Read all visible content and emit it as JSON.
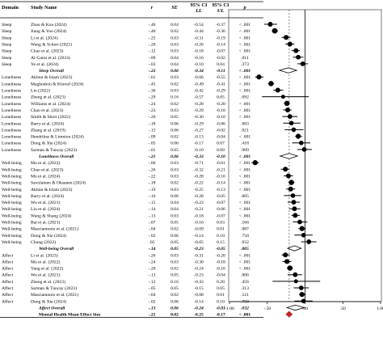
{
  "chart_data": {
    "type": "forest",
    "headers": {
      "domain": "Domain",
      "study": "Study Name",
      "r": "r",
      "se": "SE",
      "ci_line1": "95% CI",
      "ll": "LL",
      "ul": "UL",
      "p": "p"
    },
    "x_axis": {
      "min": -1.0,
      "max": 1.0,
      "tick_values": [
        -1.0,
        -0.5,
        0.0,
        0.5,
        1.0
      ],
      "tick_labels": [
        "-1.00",
        "-.50",
        ".00",
        ".50",
        "1.00"
      ]
    },
    "rows": [
      {
        "domain": "Sleep",
        "study": "Zhao & Kou (2024)",
        "r": "-.46",
        "se": "0.04",
        "ll": "-0.54",
        "ul": "-0.37",
        "p": "< .001",
        "kind": "study",
        "value": -0.46,
        "lo": -0.54,
        "hi": -0.37,
        "weight": 0.55
      },
      {
        "domain": "Sleep",
        "study": "Jiang & Yoo (2024)",
        "r": "-.40",
        "se": "0.02",
        "ll": "-0.44",
        "ul": "-0.36",
        "p": "< .001",
        "kind": "study",
        "value": -0.4,
        "lo": -0.44,
        "hi": -0.36,
        "weight": 0.7
      },
      {
        "domain": "Sleep",
        "study": "Li et al. (2024)",
        "r": "-.25",
        "se": "0.03",
        "ll": "-0.31",
        "ul": "-0.19",
        "p": "< .001",
        "kind": "study",
        "value": -0.25,
        "lo": -0.31,
        "hi": -0.19,
        "weight": 0.55
      },
      {
        "domain": "Sleep",
        "study": "Wang & Scherr (2022)",
        "r": "-.20",
        "se": "0.03",
        "ll": "-0.26",
        "ul": "-0.14",
        "p": "< .001",
        "kind": "study",
        "value": -0.2,
        "lo": -0.26,
        "hi": -0.14,
        "weight": 0.55
      },
      {
        "domain": "Sleep",
        "study": "Chao et al. (2023)",
        "r": "-.12",
        "se": "0.03",
        "ll": "-0.18",
        "ul": "-0.07",
        "p": "< .001",
        "kind": "study",
        "value": -0.12,
        "lo": -0.18,
        "hi": -0.07,
        "weight": 0.55
      },
      {
        "domain": "Sleep",
        "study": "Al-Garni et al. (2024)",
        "r": "-.09",
        "se": "0.04",
        "ll": "-0.16",
        "ul": "-0.02",
        "p": ".011",
        "kind": "study",
        "value": -0.09,
        "lo": -0.16,
        "hi": -0.02,
        "weight": 0.5
      },
      {
        "domain": "Sleep",
        "study": "Ye et al. (2024)",
        "r": "-.03",
        "se": "0.04",
        "ll": "-0.10",
        "ul": "0.04",
        "p": ".373",
        "kind": "study",
        "value": -0.03,
        "lo": -0.1,
        "hi": 0.04,
        "weight": 0.5
      },
      {
        "domain": "",
        "study": "Sleep Overall",
        "r": "-.22",
        "se": "0.06",
        "ll": "-0.34",
        "ul": "-0.11",
        "p": "< .001",
        "kind": "overall",
        "value": -0.22,
        "lo": -0.34,
        "hi": -0.11
      },
      {
        "domain": "Loneliness",
        "study": "Akhtar & Islam (2023)",
        "r": "-.61",
        "se": "0.03",
        "ll": "-0.66",
        "ul": "-0.55",
        "p": "< .001",
        "kind": "study",
        "value": -0.61,
        "lo": -0.66,
        "hi": -0.55,
        "weight": 0.6
      },
      {
        "domain": "Loneliness",
        "study": "Maghrabou & Khrouf (2024)",
        "r": "-.45",
        "se": "0.02",
        "ll": "-0.49",
        "ul": "-0.41",
        "p": "< .001",
        "kind": "study",
        "value": -0.45,
        "lo": -0.49,
        "hi": -0.41,
        "weight": 0.65
      },
      {
        "domain": "Loneliness",
        "study": "Lin (2022)",
        "r": "-.36",
        "se": "0.03",
        "ll": "-0.42",
        "ul": "-0.29",
        "p": "< .001",
        "kind": "study",
        "value": -0.36,
        "lo": -0.42,
        "hi": -0.29,
        "weight": 0.55
      },
      {
        "domain": "Loneliness",
        "study": "Zheng et al. (2023)",
        "r": "-.29",
        "se": "0.16",
        "ll": "-0.57",
        "ul": "0.05",
        "p": ".092",
        "kind": "study",
        "value": -0.29,
        "lo": -0.57,
        "hi": 0.05,
        "weight": 0.3
      },
      {
        "domain": "Loneliness",
        "study": "Williams et al. (2024)",
        "r": "-.24",
        "se": "0.02",
        "ll": "-0.28",
        "ul": "-0.20",
        "p": "< .001",
        "kind": "study",
        "value": -0.24,
        "lo": -0.28,
        "hi": -0.2,
        "weight": 0.65
      },
      {
        "domain": "Loneliness",
        "study": "Chao et al. (2023)",
        "r": "-.23",
        "se": "0.03",
        "ll": "-0.29",
        "ul": "-0.18",
        "p": "< .001",
        "kind": "study",
        "value": -0.23,
        "lo": -0.29,
        "hi": -0.18,
        "weight": 0.55
      },
      {
        "domain": "Loneliness",
        "study": "Smith & Short (2022)",
        "r": "-.20",
        "se": "0.05",
        "ll": "-0.30",
        "ul": "-0.10",
        "p": "< .001",
        "kind": "study",
        "value": -0.2,
        "lo": -0.3,
        "hi": -0.1,
        "weight": 0.5
      },
      {
        "domain": "Loneliness",
        "study": "Barry et al. (2024)",
        "r": "-.18",
        "se": "0.06",
        "ll": "-0.29",
        "ul": "-0.06",
        "p": ".003",
        "kind": "study",
        "value": -0.18,
        "lo": -0.29,
        "hi": -0.06,
        "weight": 0.45
      },
      {
        "domain": "Loneliness",
        "study": "Zhang et al. (2019)",
        "r": "-.15",
        "se": "0.06",
        "ll": "-0.27",
        "ul": "-0.02",
        "p": ".021",
        "kind": "study",
        "value": -0.15,
        "lo": -0.27,
        "hi": -0.02,
        "weight": 0.45
      },
      {
        "domain": "Loneliness",
        "study": "Hendrikse & Limniou (2024)",
        "r": "-.09",
        "se": "0.02",
        "ll": "-0.13",
        "ul": "-0.04",
        "p": "< .001",
        "kind": "study",
        "value": -0.09,
        "lo": -0.13,
        "hi": -0.04,
        "weight": 0.6
      },
      {
        "domain": "Loneliness",
        "study": "Dong & Xie (2024)",
        "r": "-.05",
        "se": "0.06",
        "ll": "-0.17",
        "ul": "0.07",
        "p": ".418",
        "kind": "study",
        "value": -0.05,
        "lo": -0.17,
        "hi": 0.07,
        "weight": 0.45
      },
      {
        "domain": "Loneliness",
        "study": "Sarman & Tuncay (2023)",
        "r": "-.01",
        "se": "0.05",
        "ll": "-0.10",
        "ul": "0.09",
        "p": ".909",
        "kind": "study",
        "value": -0.01,
        "lo": -0.1,
        "hi": 0.09,
        "weight": 0.5
      },
      {
        "domain": "",
        "study": "Loneliness Overall",
        "r": "-.21",
        "se": "0.06",
        "ll": "-0.33",
        "ul": "-0.10",
        "p": "< .001",
        "kind": "overall",
        "value": -0.21,
        "lo": -0.33,
        "hi": -0.1
      },
      {
        "domain": "Well-being",
        "study": "Mu et al. (2022)",
        "r": "-.66",
        "se": "0.03",
        "ll": "-0.71",
        "ul": "-0.61",
        "p": "< .001",
        "kind": "study",
        "value": -0.66,
        "lo": -0.71,
        "hi": -0.61,
        "weight": 0.6
      },
      {
        "domain": "Well-being",
        "study": "Chao et al. (2023)",
        "r": "-.26",
        "se": "0.03",
        "ll": "-0.32",
        "ul": "-0.21",
        "p": "< .001",
        "kind": "study",
        "value": -0.26,
        "lo": -0.32,
        "hi": -0.21,
        "weight": 0.55
      },
      {
        "domain": "Well-being",
        "study": "Mu et al. (2024)",
        "r": "-.22",
        "se": "0.03",
        "ll": "-0.28",
        "ul": "-0.16",
        "p": "< .001",
        "kind": "study",
        "value": -0.22,
        "lo": -0.28,
        "hi": -0.16,
        "weight": 0.55
      },
      {
        "domain": "Well-being",
        "study": "Savolainen & Oksanen (2024)",
        "r": "-.18",
        "se": "0.02",
        "ll": "-0.22",
        "ul": "-0.14",
        "p": "< .001",
        "kind": "study",
        "value": -0.18,
        "lo": -0.22,
        "hi": -0.14,
        "weight": 0.65
      },
      {
        "domain": "Well-being",
        "study": "Akhtar & Islam (2023)",
        "r": "-.19",
        "se": "0.03",
        "ll": "-0.25",
        "ul": "-0.13",
        "p": "< .001",
        "kind": "study",
        "value": -0.19,
        "lo": -0.25,
        "hi": -0.13,
        "weight": 0.55
      },
      {
        "domain": "Well-being",
        "study": "Barry et al. (2024)",
        "r": "-.16",
        "se": "0.06",
        "ll": "-0.28",
        "ul": "-0.05",
        "p": ".005",
        "kind": "study",
        "value": -0.16,
        "lo": -0.28,
        "hi": -0.05,
        "weight": 0.45
      },
      {
        "domain": "Well-being",
        "study": "Wu et al. (2021)",
        "r": "-.15",
        "se": "0.04",
        "ll": "-0.23",
        "ul": "-0.07",
        "p": "< .001",
        "kind": "study",
        "value": -0.15,
        "lo": -0.23,
        "hi": -0.07,
        "weight": 0.5
      },
      {
        "domain": "Well-being",
        "study": "Liu et al. (2024)",
        "r": "-.14",
        "se": "0.04",
        "ll": "-0.21",
        "ul": "-0.06",
        "p": "< .001",
        "kind": "study",
        "value": -0.14,
        "lo": -0.21,
        "hi": -0.06,
        "weight": 0.5
      },
      {
        "domain": "Well-being",
        "study": "Wang & Shang (2024)",
        "r": "-.13",
        "se": "0.03",
        "ll": "-0.18",
        "ul": "-0.07",
        "p": "< .001",
        "kind": "study",
        "value": -0.13,
        "lo": -0.18,
        "hi": -0.07,
        "weight": 0.55
      },
      {
        "domain": "Well-being",
        "study": "Bai et al. (2021)",
        "r": "-.07",
        "se": "0.05",
        "ll": "-0.16",
        "ul": "0.03",
        "p": ".166",
        "kind": "study",
        "value": -0.07,
        "lo": -0.16,
        "hi": 0.03,
        "weight": 0.5
      },
      {
        "domain": "Well-being",
        "study": "Masciantonio et al. (2021)",
        "r": "-.04",
        "se": "0.02",
        "ll": "-0.09",
        "ul": "0.01",
        "p": ".087",
        "kind": "study",
        "value": -0.04,
        "lo": -0.09,
        "hi": 0.01,
        "weight": 0.6
      },
      {
        "domain": "Well-being",
        "study": "Dong & Xie (2024)",
        "r": "-.02",
        "se": "0.06",
        "ll": "-0.14",
        "ul": "0.10",
        "p": ".750",
        "kind": "study",
        "value": -0.02,
        "lo": -0.14,
        "hi": 0.1,
        "weight": 0.45
      },
      {
        "domain": "Well-being",
        "study": "Chung (2022)",
        "r": ".05",
        "se": "0.05",
        "ll": "-0.05",
        "ul": "0.15",
        "p": ".032",
        "kind": "study",
        "value": 0.05,
        "lo": -0.05,
        "hi": 0.15,
        "weight": 0.5
      },
      {
        "domain": "",
        "study": "Well-being Overall",
        "r": "-.14",
        "se": "0.05",
        "ll": "-0.23",
        "ul": "-0.05",
        "p": ".005",
        "kind": "overall",
        "value": -0.14,
        "lo": -0.23,
        "hi": -0.05
      },
      {
        "domain": "Affect",
        "study": "Li et al. (2023)",
        "r": "-.26",
        "se": "0.03",
        "ll": "-0.31",
        "ul": "-0.20",
        "p": "< .001",
        "kind": "study",
        "value": -0.26,
        "lo": -0.31,
        "hi": -0.2,
        "weight": 0.55
      },
      {
        "domain": "Affect",
        "study": "Mu et al. (2022)",
        "r": "-.24",
        "se": "0.03",
        "ll": "-0.30",
        "ul": "-0.18",
        "p": "< .001",
        "kind": "study",
        "value": -0.24,
        "lo": -0.3,
        "hi": -0.18,
        "weight": 0.55
      },
      {
        "domain": "Affect",
        "study": "Yang et al. (2022)",
        "r": "-.20",
        "se": "0.02",
        "ll": "-0.24",
        "ul": "-0.16",
        "p": "< .001",
        "kind": "study",
        "value": -0.2,
        "lo": -0.24,
        "hi": -0.16,
        "weight": 0.65
      },
      {
        "domain": "Affect",
        "study": "Wu et al. (2021)",
        "r": "-.13",
        "se": "0.05",
        "ll": "-0.23",
        "ul": "-0.04",
        "p": ".006",
        "kind": "study",
        "value": -0.13,
        "lo": -0.23,
        "hi": -0.04,
        "weight": 0.5
      },
      {
        "domain": "Affect",
        "study": "Zheng et al. (2023)",
        "r": "-.12",
        "se": "0.16",
        "ll": "-0.43",
        "ul": "0.20",
        "p": ".456",
        "kind": "study",
        "value": -0.12,
        "lo": -0.43,
        "hi": 0.2,
        "weight": 0.3
      },
      {
        "domain": "Affect",
        "study": "Sarman & Tuncay (2023)",
        "r": "-.05",
        "se": "0.05",
        "ll": "-0.15",
        "ul": "0.05",
        "p": ".313",
        "kind": "study",
        "value": -0.05,
        "lo": -0.15,
        "hi": 0.05,
        "weight": 0.5
      },
      {
        "domain": "Affect",
        "study": "Masciantonio et al. (2021)",
        "r": "-.04",
        "se": "0.02",
        "ll": "-0.08",
        "ul": "0.01",
        "p": ".121",
        "kind": "study",
        "value": -0.04,
        "lo": -0.08,
        "hi": 0.01,
        "weight": 0.6
      },
      {
        "domain": "Affect",
        "study": "Dong & Xie (2024)",
        "r": "-.02",
        "se": "0.06",
        "ll": "-0.14",
        "ul": "0.10",
        "p": ".750",
        "kind": "study",
        "value": -0.02,
        "lo": -0.14,
        "hi": 0.1,
        "weight": 0.45
      },
      {
        "domain": "",
        "study": "Affect Overall",
        "r": "-.13",
        "se": "0.06",
        "ll": "-0.24",
        "ul": "-0.01",
        "p": ".032",
        "kind": "overall",
        "value": -0.13,
        "lo": -0.24,
        "hi": -0.01
      },
      {
        "domain": "",
        "study": "Mental Health Mean Effect Size",
        "r": "-.21",
        "se": "0.02",
        "ll": "-0.25",
        "ul": "-0.17",
        "p": "< .001",
        "kind": "mean",
        "value": -0.21,
        "lo": -0.25,
        "hi": -0.17
      }
    ]
  },
  "colors": {
    "marker": "#000000",
    "overall_fill": "#ffffff",
    "mean_fill": "#c0242c",
    "rule": "#000000"
  }
}
